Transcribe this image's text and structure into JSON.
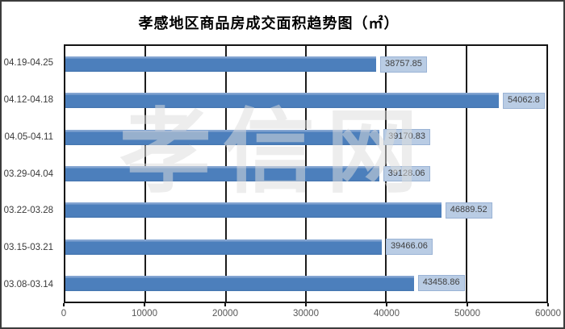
{
  "chart_data": {
    "type": "bar",
    "orientation": "horizontal",
    "title": "孝感地区商品房成交面积趋势图（㎡）",
    "categories": [
      "04.19-04.25",
      "04.12-04.18",
      "04.05-04.11",
      "03.29-04.04",
      "03.22-03.28",
      "03.15-03.21",
      "03.08-03.14"
    ],
    "values": [
      38757.85,
      54062.8,
      39170.83,
      39128.06,
      46889.52,
      39466.06,
      43458.86
    ],
    "value_labels": [
      "38757.85",
      "54062.8",
      "39170.83",
      "39128.06",
      "46889.52",
      "39466.06",
      "43458.86"
    ],
    "xlabel": "",
    "ylabel": "",
    "xlim": [
      0,
      60000
    ],
    "x_tick_labels": [
      "0",
      "10000",
      "20000",
      "30000",
      "40000",
      "50000",
      "60000"
    ],
    "x_tick_values": [
      0,
      10000,
      20000,
      30000,
      40000,
      50000,
      60000
    ],
    "grid": "vertical-on",
    "legend": "none",
    "colors": {
      "bar": "#4c7fbc",
      "bar_highlight": "#82a4d1",
      "value_box_fill": "#b9cce4",
      "value_box_border": "#9ab3d5",
      "gridline": "#1c1c1c",
      "plot_border": "#141414",
      "frame_border": "#3c3c3c",
      "title_text": "#000000",
      "axis_text": "#565656"
    }
  },
  "watermark": {
    "text": "孝信网"
  }
}
